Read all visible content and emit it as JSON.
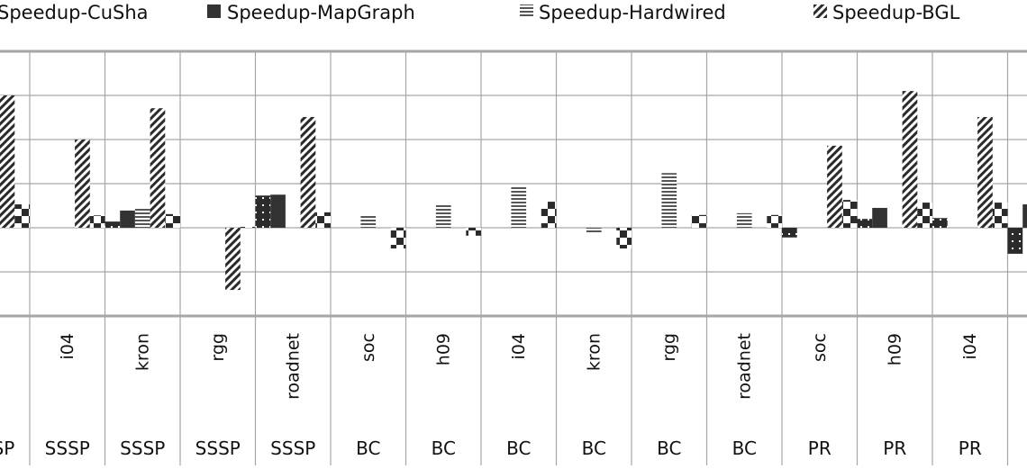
{
  "chart_data": {
    "type": "bar",
    "title": "",
    "xlabel": "",
    "ylabel": "",
    "y_units_note": "",
    "ylim": [
      -2,
      4
    ],
    "grid": true,
    "legend_position": "top",
    "categories": [
      {
        "name": "",
        "group": "SSSP"
      },
      {
        "name": "i04",
        "group": "SSSP"
      },
      {
        "name": "kron",
        "group": "SSSP"
      },
      {
        "name": "rgg",
        "group": "SSSP"
      },
      {
        "name": "roadnet",
        "group": "SSSP"
      },
      {
        "name": "soc",
        "group": "BC"
      },
      {
        "name": "h09",
        "group": "BC"
      },
      {
        "name": "i04",
        "group": "BC"
      },
      {
        "name": "kron",
        "group": "BC"
      },
      {
        "name": "rgg",
        "group": "BC"
      },
      {
        "name": "roadnet",
        "group": "BC"
      },
      {
        "name": "soc",
        "group": "PR"
      },
      {
        "name": "h09",
        "group": "PR"
      },
      {
        "name": "i04",
        "group": "PR"
      },
      {
        "name": "",
        "group": ""
      }
    ],
    "series": [
      {
        "name": "Speedup-CuSha",
        "pattern": "dotted-black",
        "values": [
          0,
          0,
          0.14,
          0,
          0.73,
          0,
          0,
          0,
          0,
          0,
          0,
          -0.22,
          0.2,
          0.22,
          -0.59
        ]
      },
      {
        "name": "Speedup-MapGraph",
        "pattern": "solid-dark",
        "values": [
          0,
          0,
          0.39,
          0,
          0.75,
          0,
          0,
          0,
          0,
          0,
          0,
          0,
          0.45,
          0,
          0.53
        ]
      },
      {
        "name": "Speedup-Hardwired",
        "pattern": "horizontal-lines",
        "values": [
          0,
          0,
          0.43,
          0,
          0,
          0.27,
          0.53,
          0.92,
          -0.12,
          1.24,
          0.33,
          0,
          0,
          0,
          0
        ]
      },
      {
        "name": "Speedup-BGL",
        "pattern": "diagonal-hatch",
        "values": [
          3.0,
          2.0,
          2.71,
          -1.41,
          2.51,
          0,
          0,
          0,
          0,
          0,
          0,
          1.86,
          3.1,
          2.51,
          0
        ]
      },
      {
        "name": "",
        "pattern": "checker",
        "values": [
          0.53,
          0.28,
          0.31,
          0.02,
          0.35,
          -0.47,
          -0.18,
          0.59,
          -0.47,
          0.29,
          0.29,
          0.63,
          0.57,
          0.57,
          0
        ]
      }
    ],
    "colors": {
      "bar_dark": "#333333",
      "grid": "#a6a6a6",
      "axis": "#a6a6a6"
    }
  }
}
